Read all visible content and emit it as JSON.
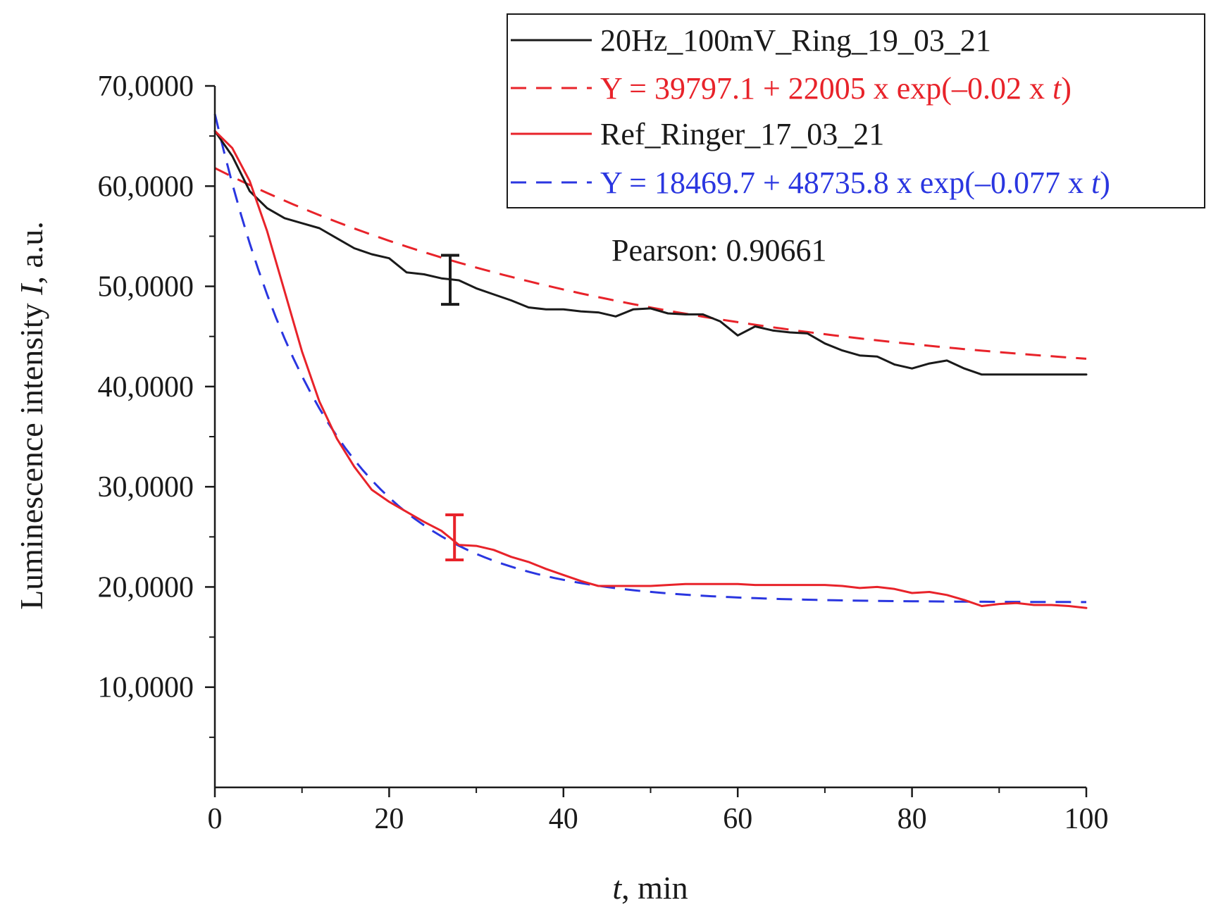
{
  "chart_data": {
    "type": "line",
    "title": "",
    "xlabel_italic": "t",
    "xlabel_rest": ", min",
    "ylabel_prefix": "Luminescence intensity ",
    "ylabel_italic": "I",
    "ylabel_suffix": ", a.u.",
    "xlim": [
      0,
      100
    ],
    "ylim": [
      0,
      70000
    ],
    "x_ticks": [
      0,
      20,
      40,
      60,
      80,
      100
    ],
    "x_tick_labels": [
      "0",
      "20",
      "40",
      "60",
      "80",
      "100"
    ],
    "y_ticks": [
      10000,
      20000,
      30000,
      40000,
      50000,
      60000,
      70000
    ],
    "y_tick_labels": [
      "10,0000",
      "20,0000",
      "30,0000",
      "40,0000",
      "50,0000",
      "60,0000",
      "70,0000"
    ],
    "x_minor_step": 10,
    "y_minor_step": 5000,
    "grid": false,
    "legend_position": "top-right",
    "series": [
      {
        "name": "20Hz_100mV_Ring_19_03_21",
        "style": "solid",
        "color": "#1a1a1a",
        "points": [
          [
            0,
            65500
          ],
          [
            2,
            63000
          ],
          [
            4,
            59500
          ],
          [
            6,
            57800
          ],
          [
            8,
            56800
          ],
          [
            10,
            56300
          ],
          [
            12,
            55800
          ],
          [
            14,
            54800
          ],
          [
            16,
            53800
          ],
          [
            18,
            53200
          ],
          [
            20,
            52800
          ],
          [
            22,
            51400
          ],
          [
            24,
            51200
          ],
          [
            26,
            50800
          ],
          [
            28,
            50600
          ],
          [
            30,
            49800
          ],
          [
            32,
            49200
          ],
          [
            34,
            48600
          ],
          [
            36,
            47900
          ],
          [
            38,
            47700
          ],
          [
            40,
            47700
          ],
          [
            42,
            47500
          ],
          [
            44,
            47400
          ],
          [
            46,
            47000
          ],
          [
            48,
            47700
          ],
          [
            50,
            47800
          ],
          [
            52,
            47300
          ],
          [
            54,
            47200
          ],
          [
            56,
            47200
          ],
          [
            58,
            46500
          ],
          [
            60,
            45100
          ],
          [
            62,
            46000
          ],
          [
            64,
            45600
          ],
          [
            66,
            45400
          ],
          [
            68,
            45300
          ],
          [
            70,
            44300
          ],
          [
            72,
            43600
          ],
          [
            74,
            43100
          ],
          [
            76,
            43000
          ],
          [
            78,
            42200
          ],
          [
            80,
            41800
          ],
          [
            82,
            42300
          ],
          [
            84,
            42600
          ],
          [
            86,
            41800
          ],
          [
            88,
            41200
          ],
          [
            90,
            41200
          ],
          [
            92,
            41200
          ],
          [
            94,
            41200
          ],
          [
            96,
            41200
          ],
          [
            98,
            41200
          ],
          [
            100,
            41200
          ]
        ]
      },
      {
        "name": "Y = 39797.1 + 22005 x exp(–0.02 x t)",
        "legend_main": "Y = 39797.1 + 22005 x exp(–0.02 x ",
        "legend_italic": "t",
        "legend_close": ")",
        "style": "dashed",
        "color": "#e8232a",
        "fit": {
          "a": 39797.1,
          "b": 22005,
          "k": 0.02
        }
      },
      {
        "name": "Ref_Ringer_17_03_21",
        "style": "solid",
        "color": "#e8232a",
        "points": [
          [
            0,
            65500
          ],
          [
            2,
            63800
          ],
          [
            4,
            60500
          ],
          [
            6,
            55500
          ],
          [
            8,
            49500
          ],
          [
            10,
            43500
          ],
          [
            12,
            38500
          ],
          [
            14,
            34800
          ],
          [
            16,
            32000
          ],
          [
            18,
            29700
          ],
          [
            20,
            28500
          ],
          [
            22,
            27500
          ],
          [
            24,
            26500
          ],
          [
            26,
            25600
          ],
          [
            28,
            24200
          ],
          [
            30,
            24100
          ],
          [
            32,
            23700
          ],
          [
            34,
            23000
          ],
          [
            36,
            22500
          ],
          [
            38,
            21800
          ],
          [
            40,
            21200
          ],
          [
            42,
            20600
          ],
          [
            44,
            20100
          ],
          [
            46,
            20100
          ],
          [
            48,
            20100
          ],
          [
            50,
            20100
          ],
          [
            52,
            20200
          ],
          [
            54,
            20300
          ],
          [
            56,
            20300
          ],
          [
            58,
            20300
          ],
          [
            60,
            20300
          ],
          [
            62,
            20200
          ],
          [
            64,
            20200
          ],
          [
            66,
            20200
          ],
          [
            68,
            20200
          ],
          [
            70,
            20200
          ],
          [
            72,
            20100
          ],
          [
            74,
            19900
          ],
          [
            76,
            20000
          ],
          [
            78,
            19800
          ],
          [
            80,
            19400
          ],
          [
            82,
            19500
          ],
          [
            84,
            19200
          ],
          [
            86,
            18700
          ],
          [
            88,
            18100
          ],
          [
            90,
            18300
          ],
          [
            92,
            18400
          ],
          [
            94,
            18200
          ],
          [
            96,
            18200
          ],
          [
            98,
            18100
          ],
          [
            100,
            17900
          ]
        ]
      },
      {
        "name": "Y = 18469.7 + 48735.8 x exp(–0.077 x t)",
        "legend_main": "Y = 18469.7 + 48735.8 x exp(–0.077 x ",
        "legend_italic": "t",
        "legend_close": ")",
        "style": "dashed",
        "color": "#2a36e0",
        "fit": {
          "a": 18469.7,
          "b": 48735.8,
          "k": 0.077
        }
      }
    ],
    "error_bars": [
      {
        "x": 27,
        "y": 50600,
        "low": 48200,
        "high": 53100,
        "color": "#1a1a1a"
      },
      {
        "x": 27.5,
        "y": 24900,
        "low": 22700,
        "high": 27200,
        "color": "#e8232a"
      }
    ],
    "annotation": "Pearson: 0.90661"
  }
}
